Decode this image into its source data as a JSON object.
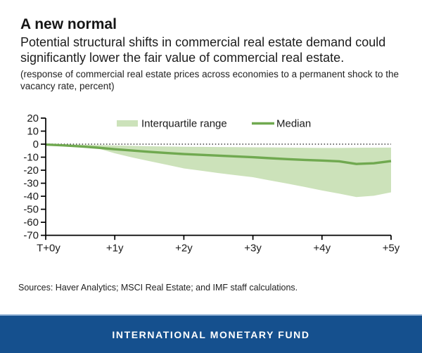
{
  "header": {
    "title": "A new normal",
    "subtitle": "Potential structural shifts in commercial real estate demand could significantly lower the fair value of commercial real estate.",
    "note": "(response of commercial real estate prices across economies to a permanent shock to the vacancy rate, percent)"
  },
  "chart_data": {
    "type": "area",
    "title": "",
    "xlabel": "",
    "ylabel": "",
    "xlim": [
      0,
      5
    ],
    "ylim": [
      -70,
      20
    ],
    "grid": false,
    "zero_line_style": "dotted",
    "legend_position": "top-inside",
    "x_ticks": [
      0,
      1,
      2,
      3,
      4,
      5
    ],
    "x_tick_labels": [
      "T+0y",
      "+1y",
      "+2y",
      "+3y",
      "+4y",
      "+5y"
    ],
    "y_ticks": [
      20,
      10,
      0,
      -10,
      -20,
      -30,
      -40,
      -50,
      -60,
      -70
    ],
    "x": [
      0,
      0.25,
      0.5,
      0.75,
      1,
      1.25,
      1.5,
      1.75,
      2,
      2.25,
      2.5,
      2.75,
      3,
      3.25,
      3.5,
      3.75,
      4,
      4.25,
      4.5,
      4.75,
      5
    ],
    "series": [
      {
        "name": "Interquartile range",
        "kind": "band",
        "color": "#cce2ba",
        "upper": [
          0,
          -0.2,
          -0.4,
          -0.7,
          -1.0,
          -1.3,
          -1.6,
          -1.8,
          -2.0,
          -2.1,
          -2.2,
          -2.3,
          -2.4,
          -2.5,
          -2.6,
          -2.8,
          -2.9,
          -2.9,
          -2.8,
          -2.7,
          -2.6
        ],
        "lower": [
          -0.6,
          -1.3,
          -2.2,
          -3.2,
          -7.0,
          -10.2,
          -13.0,
          -15.8,
          -18.6,
          -20.4,
          -22.2,
          -23.8,
          -25.4,
          -27.9,
          -30.3,
          -32.9,
          -35.6,
          -38.0,
          -40.6,
          -39.6,
          -37.0
        ]
      },
      {
        "name": "Median",
        "kind": "line",
        "color": "#70a950",
        "values": [
          -0.3,
          -0.9,
          -1.7,
          -2.7,
          -3.9,
          -4.9,
          -5.9,
          -6.8,
          -7.6,
          -8.2,
          -8.8,
          -9.4,
          -10.0,
          -10.8,
          -11.5,
          -12.1,
          -12.6,
          -13.2,
          -15.2,
          -14.7,
          -13.0
        ]
      }
    ],
    "colors": {
      "axis": "#000000",
      "zero_line": "#3c3c3c",
      "tick_text": "#1a1a1a"
    }
  },
  "footer": {
    "sources": "Sources: Haver Analytics; MSCI Real Estate; and IMF staff calculations.",
    "banner": "INTERNATIONAL MONETARY FUND",
    "banner_color": "#15508e"
  }
}
